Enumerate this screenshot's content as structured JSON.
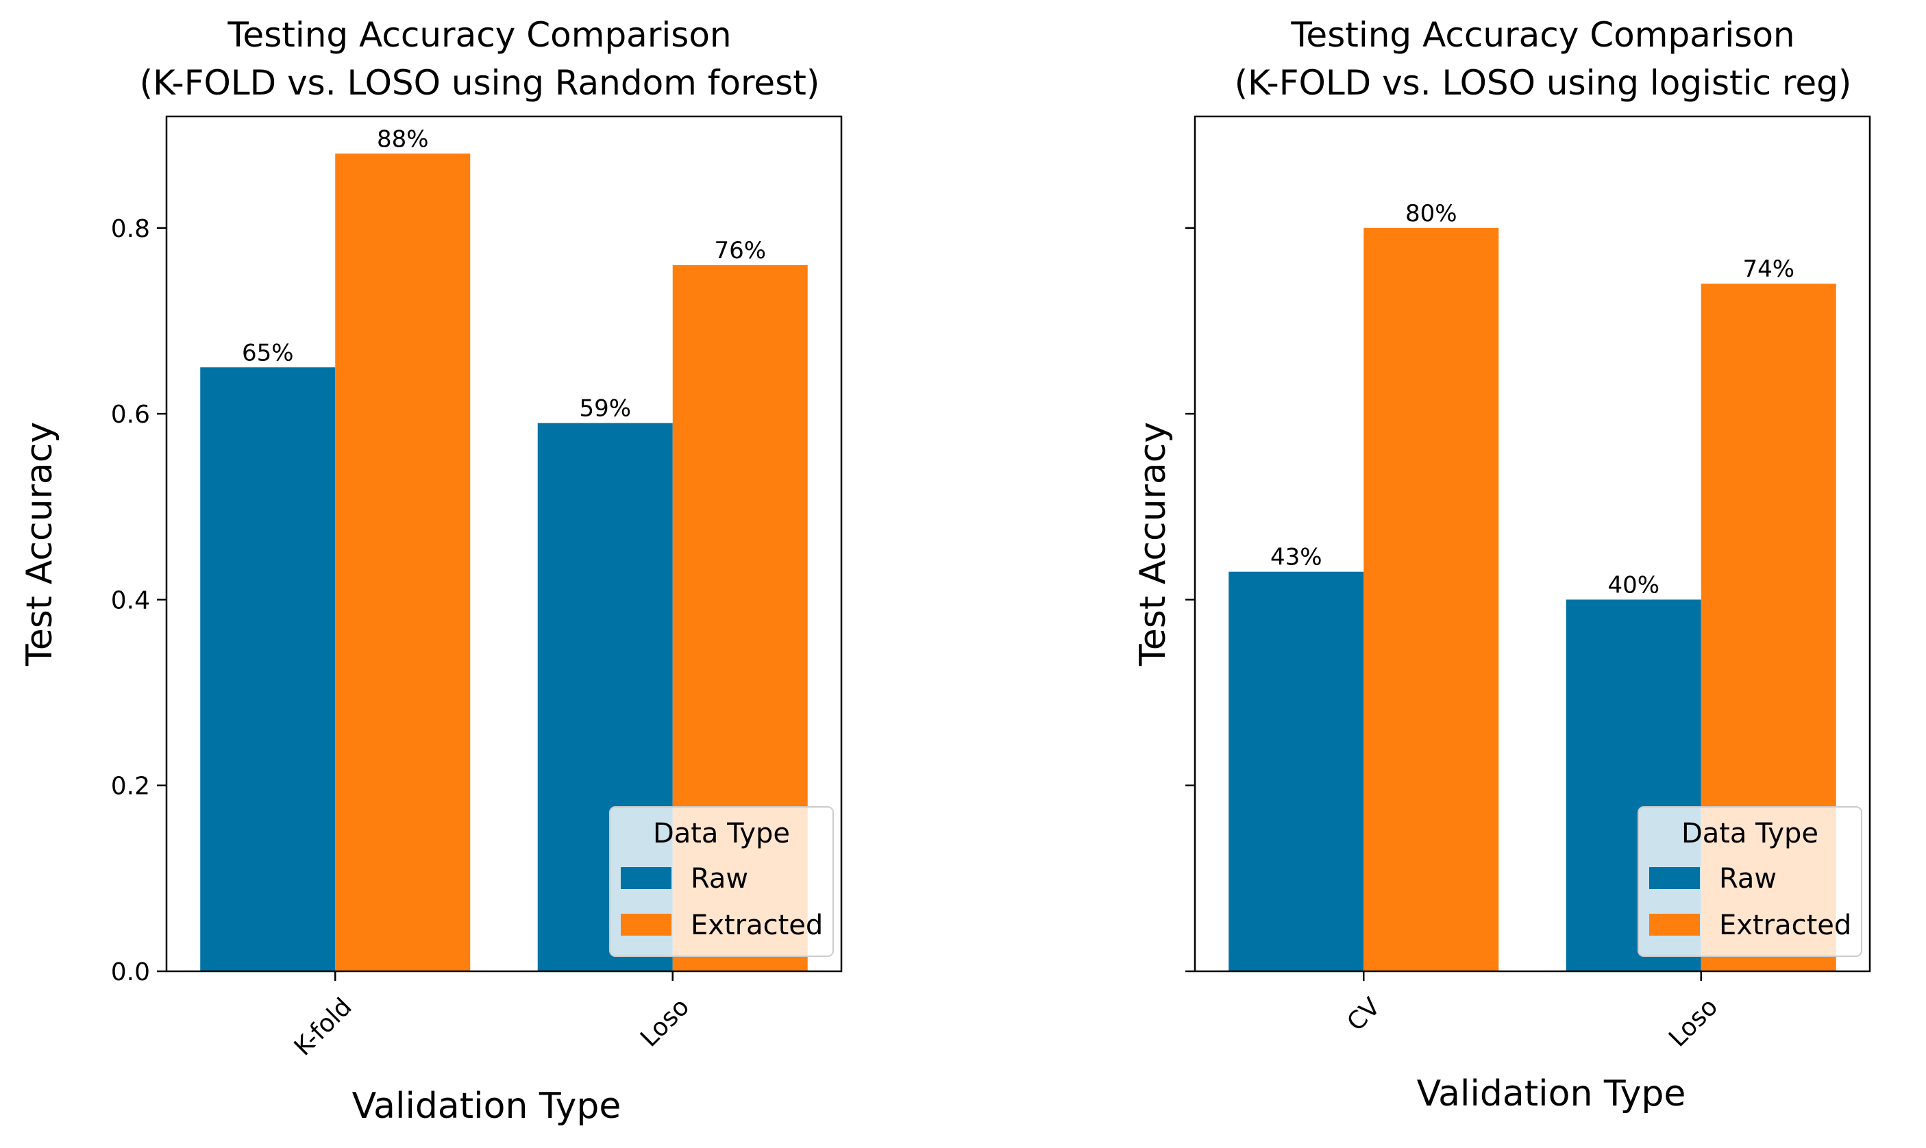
{
  "chart_data": [
    {
      "type": "bar",
      "title_lines": [
        "Testing Accuracy Comparison",
        "(K-FOLD vs. LOSO using Random forest)"
      ],
      "xlabel": "Validation Type",
      "ylabel": "Test Accuracy",
      "categories": [
        "K-fold",
        "Loso"
      ],
      "series": [
        {
          "name": "Raw",
          "values": [
            0.65,
            0.59
          ],
          "labels": [
            "65%",
            "59%"
          ]
        },
        {
          "name": "Extracted",
          "values": [
            0.88,
            0.76
          ],
          "labels": [
            "88%",
            "76%"
          ]
        }
      ],
      "ylim": [
        0,
        0.92
      ],
      "yticks": [
        0.0,
        0.2,
        0.4,
        0.6,
        0.8
      ],
      "ytick_labels": [
        "0.0",
        "0.2",
        "0.4",
        "0.6",
        "0.8"
      ],
      "show_ytick_labels": true,
      "legend": {
        "title": "Data Type",
        "position": "lower-right"
      }
    },
    {
      "type": "bar",
      "title_lines": [
        "Testing Accuracy Comparison",
        "(K-FOLD vs. LOSO using logistic reg)"
      ],
      "xlabel": "Validation Type",
      "ylabel": "Test Accuracy",
      "categories": [
        "CV",
        "Loso"
      ],
      "series": [
        {
          "name": "Raw",
          "values": [
            0.43,
            0.4
          ],
          "labels": [
            "43%",
            "40%"
          ]
        },
        {
          "name": "Extracted",
          "values": [
            0.8,
            0.74
          ],
          "labels": [
            "80%",
            "74%"
          ]
        }
      ],
      "ylim": [
        0,
        0.92
      ],
      "yticks": [
        0.0,
        0.2,
        0.4,
        0.6,
        0.8
      ],
      "ytick_labels": [
        "",
        "",
        "",
        "",
        ""
      ],
      "show_ytick_labels": false,
      "legend": {
        "title": "Data Type",
        "position": "lower-right"
      }
    }
  ],
  "colors": {
    "Raw": "#0072a3",
    "Extracted": "#ff7f0e"
  }
}
